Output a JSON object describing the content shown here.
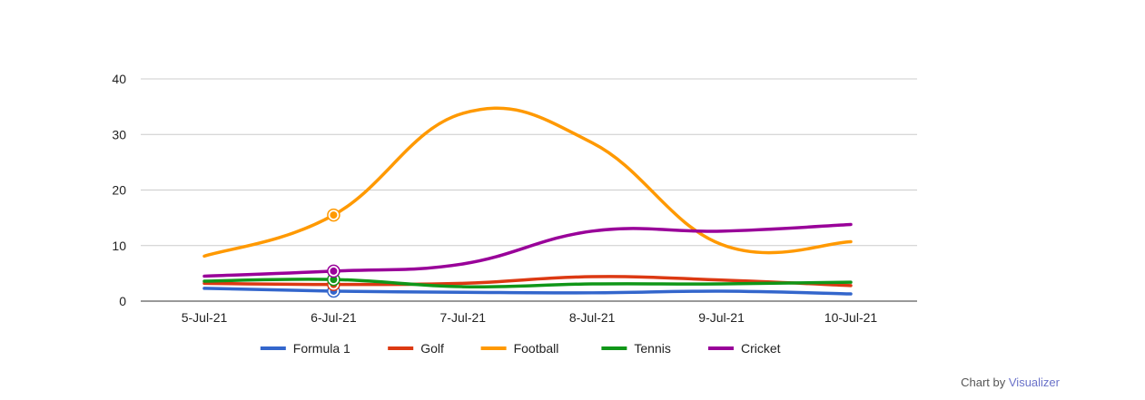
{
  "chart_data": {
    "type": "line",
    "curve": "smooth",
    "categories": [
      "5-Jul-21",
      "6-Jul-21",
      "7-Jul-21",
      "8-Jul-21",
      "9-Jul-21",
      "10-Jul-21"
    ],
    "ylim": [
      0,
      40
    ],
    "yticks": [
      "0",
      "10",
      "20",
      "30",
      "40"
    ],
    "grid": true,
    "legend_position": "bottom",
    "highlighted_category": "6-Jul-21",
    "series": [
      {
        "name": "Formula 1",
        "color": "#3366cc",
        "values": [
          2.3,
          1.8,
          1.6,
          1.5,
          1.8,
          1.3
        ]
      },
      {
        "name": "Golf",
        "color": "#dc3912",
        "values": [
          3.2,
          3.0,
          3.2,
          4.4,
          3.8,
          2.8
        ]
      },
      {
        "name": "Football",
        "color": "#ff9900",
        "values": [
          8.1,
          15.5,
          33.8,
          28.5,
          10.2,
          10.7
        ]
      },
      {
        "name": "Tennis",
        "color": "#109618",
        "values": [
          3.6,
          3.9,
          2.6,
          3.1,
          3.1,
          3.4
        ]
      },
      {
        "name": "Cricket",
        "color": "#990099",
        "values": [
          4.5,
          5.4,
          6.7,
          12.6,
          12.6,
          13.8
        ]
      }
    ]
  },
  "credit": {
    "prefix": "Chart by",
    "link": "Visualizer"
  }
}
